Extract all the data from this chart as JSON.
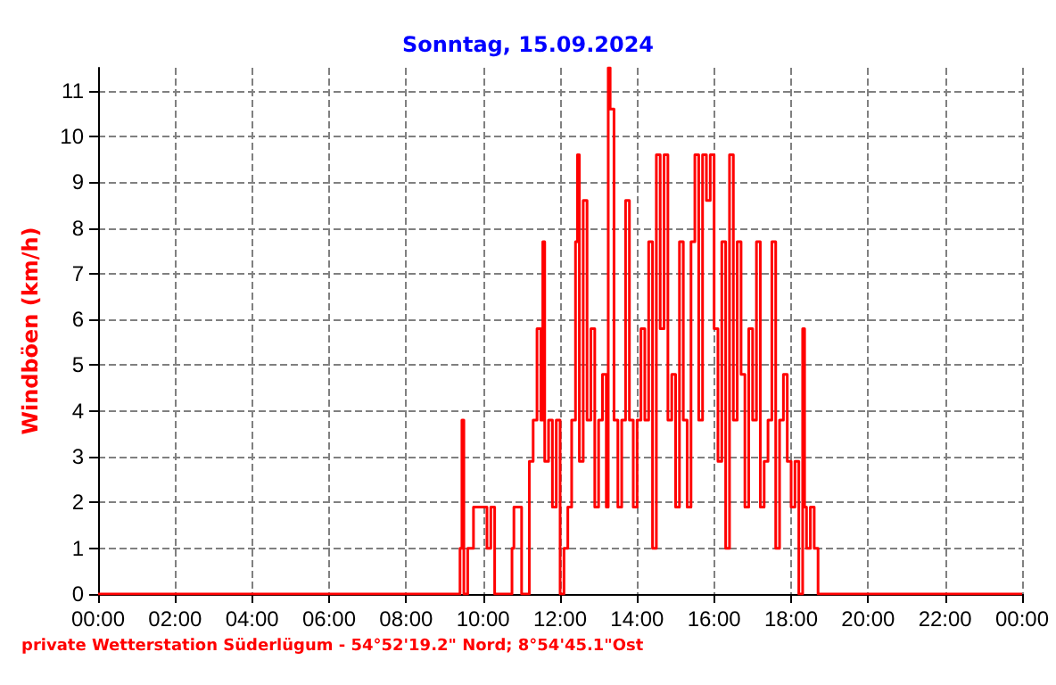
{
  "chart_data": {
    "type": "step",
    "title": "Sonntag, 15.09.2024",
    "ylabel": "Windböen (km/h)",
    "annotations": [
      "private Wetterstation Süderlügum - 54°52'19.2\" Nord; 8°54'45.1\"Ost"
    ],
    "x": [
      0,
      9.25,
      9.4,
      9.45,
      9.5,
      9.6,
      9.75,
      9.8,
      10.0,
      10.1,
      10.2,
      10.3,
      10.75,
      10.8,
      11.0,
      11.2,
      11.3,
      11.4,
      11.5,
      11.55,
      11.6,
      11.7,
      11.8,
      11.9,
      12.0,
      12.1,
      12.2,
      12.3,
      12.4,
      12.45,
      12.5,
      12.6,
      12.7,
      12.8,
      12.9,
      13.0,
      13.1,
      13.2,
      13.25,
      13.3,
      13.4,
      13.5,
      13.6,
      13.7,
      13.8,
      13.9,
      14.0,
      14.1,
      14.2,
      14.3,
      14.4,
      14.5,
      14.6,
      14.7,
      14.8,
      14.9,
      15.0,
      15.1,
      15.2,
      15.3,
      15.4,
      15.5,
      15.6,
      15.7,
      15.8,
      15.9,
      16.0,
      16.1,
      16.2,
      16.3,
      16.4,
      16.5,
      16.6,
      16.7,
      16.8,
      16.9,
      17.0,
      17.1,
      17.2,
      17.3,
      17.4,
      17.5,
      17.6,
      17.7,
      17.8,
      17.9,
      18.0,
      18.1,
      18.2,
      18.3,
      18.35,
      18.4,
      18.5,
      18.6,
      18.7,
      24
    ],
    "series": [
      {
        "color": "#ff0000",
        "values": [
          0,
          0,
          1,
          3.8,
          0,
          1,
          1.9,
          1.9,
          1.9,
          1,
          1.9,
          0,
          1,
          1.9,
          0,
          2.9,
          3.8,
          5.8,
          3.8,
          7.7,
          2.9,
          3.8,
          1.9,
          3.8,
          0,
          1,
          1.9,
          3.8,
          7.7,
          9.6,
          2.9,
          8.6,
          3.8,
          5.8,
          1.9,
          3.8,
          4.8,
          1.9,
          11.5,
          10.6,
          3.8,
          1.9,
          3.8,
          8.6,
          3.8,
          1.9,
          3.8,
          5.8,
          3.8,
          7.7,
          1,
          9.6,
          5.8,
          9.6,
          3.8,
          4.8,
          1.9,
          7.7,
          3.8,
          1.9,
          7.7,
          9.6,
          3.8,
          9.6,
          8.6,
          9.6,
          5.8,
          2.9,
          7.7,
          1,
          9.6,
          3.8,
          7.7,
          4.8,
          1.9,
          5.8,
          3.8,
          7.7,
          1.9,
          2.9,
          3.8,
          7.7,
          1,
          3.8,
          4.8,
          2.9,
          1.9,
          2.9,
          0,
          5.8,
          1.9,
          1,
          1.9,
          1,
          0,
          0
        ]
      }
    ],
    "xlim": [
      0,
      24
    ],
    "xticks": [
      {
        "value": 0,
        "label": "00:00"
      },
      {
        "value": 2,
        "label": "02:00"
      },
      {
        "value": 4,
        "label": "04:00"
      },
      {
        "value": 6,
        "label": "06:00"
      },
      {
        "value": 8,
        "label": "08:00"
      },
      {
        "value": 10,
        "label": "10:00"
      },
      {
        "value": 12,
        "label": "12:00"
      },
      {
        "value": 14,
        "label": "14:00"
      },
      {
        "value": 16,
        "label": "16:00"
      },
      {
        "value": 18,
        "label": "18:00"
      },
      {
        "value": 20,
        "label": "20:00"
      },
      {
        "value": 22,
        "label": "22:00"
      },
      {
        "value": 24,
        "label": "00:00"
      }
    ],
    "ylim": [
      0,
      11.5
    ],
    "yticks": [
      0,
      1,
      2,
      3,
      4,
      5,
      6,
      7,
      8,
      9,
      10,
      11
    ],
    "grid": true,
    "marker": "none",
    "line_style": "solid"
  }
}
